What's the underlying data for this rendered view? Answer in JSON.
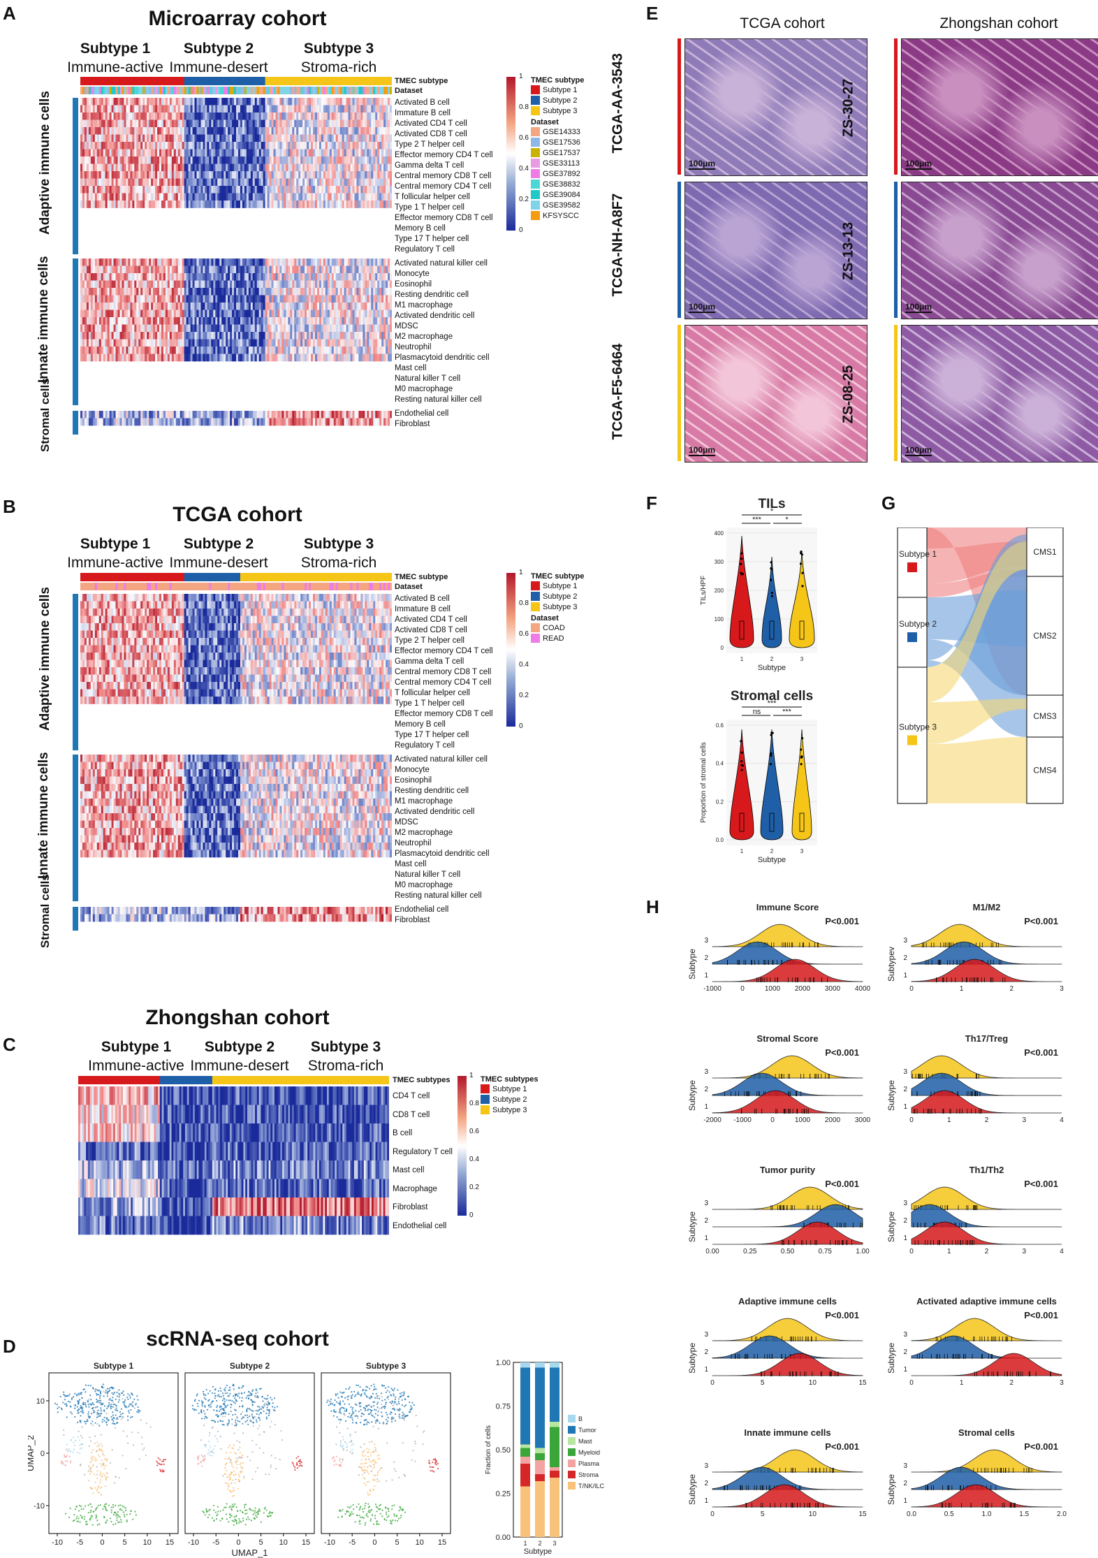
{
  "colors": {
    "s1": "#d7191c",
    "s2": "#1f5fa8",
    "s3": "#f5c518",
    "group_bar": "#1f77b4",
    "heat_hi": "#b2182b",
    "heat_lo": "#1a2a9a"
  },
  "panels": {
    "A": "A",
    "B": "B",
    "C": "C",
    "D": "D",
    "E": "E",
    "F": "F",
    "G": "G",
    "H": "H"
  },
  "subtypes": {
    "s1": "Subtype 1",
    "s2": "Subtype 2",
    "s3": "Subtype 3",
    "s1d": "Immune-active",
    "s2d": "Immune-desert",
    "s3d": "Stroma-rich"
  },
  "groups": {
    "adaptive": "Adaptive immune cells",
    "innate": "Innate immune cells",
    "stromal": "Stromal cells"
  },
  "annot": {
    "tmec": "TMEC subtype",
    "dataset": "Dataset",
    "tmecs": "TMEC subtypes"
  },
  "colorbar": [
    "1",
    "0.8",
    "0.6",
    "0.4",
    "0.2",
    "0"
  ],
  "adaptive_rows": [
    "Activated B cell",
    "Immature  B cell",
    "Activated CD4 T cell",
    "Activated CD8 T cell",
    "Type 2 T helper cell",
    "Effector memory CD4 T cell",
    "Gamma delta T cell",
    "Central memory CD8 T cell",
    "Central memory CD4 T cell",
    "T follicular helper cell",
    "Type 1 T helper cell",
    "Effector memory CD8 T cell",
    "Memory B cell",
    "Type 17 T helper cell",
    "Regulatory T cell"
  ],
  "innate_rows": [
    "Activated natural killer cell",
    "Monocyte",
    "Eosinophil",
    "Resting dendritic cell",
    "M1 macrophage",
    "Activated dendritic cell",
    "MDSC",
    "M2 macrophage",
    "Neutrophil",
    "Plasmacytoid dendritic cell",
    "Mast cell",
    "Natural killer T cell",
    "M0 macrophage",
    "Resting natural killer cell"
  ],
  "stromal_rows": [
    "Endothelial cell",
    "Fibroblast"
  ],
  "panelA": {
    "title": "Microarray cohort",
    "datasets": [
      "GSE14333",
      "GSE17536",
      "GSE17537",
      "GSE33113",
      "GSE37892",
      "GSE38832",
      "GSE39084",
      "GSE39582",
      "KFSYSCC"
    ],
    "dataset_colors": [
      "#f4a582",
      "#8fb8e8",
      "#c9b300",
      "#e89be0",
      "#ef7ce6",
      "#4dd6d6",
      "#21c8c8",
      "#7fd4e8",
      "#f39c12"
    ]
  },
  "panelB": {
    "title": "TCGA cohort",
    "datasets": [
      "COAD",
      "READ"
    ],
    "dataset_colors": [
      "#f4a582",
      "#ef7ce6"
    ]
  },
  "panelC": {
    "title": "Zhongshan cohort",
    "rows": [
      "CD4 T cell",
      "CD8 T cell",
      "B cell",
      "Regulatory T cell",
      "Mast cell",
      "Macrophage",
      "Fibroblast",
      "Endothelial cell"
    ]
  },
  "panelD": {
    "title": "scRNA-seq cohort",
    "xlabel": "UMAP_1",
    "ylabel": "UMAP_2",
    "xticks": [
      "-10",
      "-5",
      "0",
      "5",
      "10",
      "15"
    ],
    "yticks": [
      "10",
      "0",
      "-10"
    ],
    "bar": {
      "ylabel": "Fraction of cells",
      "xlabel": "Subtype",
      "yticks": [
        "1.00",
        "0.75",
        "0.50",
        "0.25",
        "0.00"
      ],
      "xticks": [
        "1",
        "2",
        "3"
      ],
      "legend": [
        "B",
        "Tumor",
        "Mast",
        "Myeloid",
        "Plasma",
        "Stroma",
        "T/NK/ILC"
      ],
      "legend_colors": [
        "#a6d8ee",
        "#1f77b4",
        "#b8e6a0",
        "#3aa63a",
        "#f4a3a3",
        "#d62728",
        "#f9c27a"
      ],
      "fractions": [
        [
          0.03,
          0.44,
          0.02,
          0.05,
          0.04,
          0.13,
          0.29
        ],
        [
          0.03,
          0.46,
          0.03,
          0.04,
          0.08,
          0.04,
          0.32
        ],
        [
          0.03,
          0.31,
          0.03,
          0.23,
          0.02,
          0.04,
          0.34
        ]
      ]
    }
  },
  "panelE": {
    "col1": "TCGA cohort",
    "col2": "Zhongshan cohort",
    "left": [
      "TCGA-AA-3543",
      "TCGA-NH-A8F7",
      "TCGA-F5-6464"
    ],
    "right": [
      "ZS-30-27",
      "ZS-13-13",
      "ZS-08-25"
    ],
    "scale": "100μm"
  },
  "panelF": {
    "tils": {
      "title": "TILs",
      "ylabel": "TILs/HPF",
      "xlabel": "Subtype",
      "yticks": [
        "400",
        "300",
        "200",
        "100",
        "0"
      ],
      "xticks": [
        "1",
        "2",
        "3"
      ],
      "sig": [
        "*",
        "***",
        "*"
      ]
    },
    "stromal": {
      "title": "Stromal cells",
      "ylabel": "Proportion of stromal cells",
      "xlabel": "Subtype",
      "yticks": [
        "0.6",
        "0.4",
        "0.2",
        "0.0"
      ],
      "xticks": [
        "1",
        "2",
        "3"
      ],
      "sig": [
        "***",
        "ns",
        "***"
      ]
    }
  },
  "panelG": {
    "left": [
      "Subtype 1",
      "Subtype 2",
      "Subtype 3"
    ],
    "right": [
      "CMS1",
      "CMS2",
      "CMS3",
      "CMS4"
    ]
  },
  "panelH": [
    {
      "title": "Immune Score",
      "p": "P<0.001",
      "ylabel": "Subtype",
      "xticks": [
        "-1000",
        "0",
        "1000",
        "2000",
        "3000",
        "4000"
      ],
      "means": [
        0.55,
        0.3,
        0.45
      ]
    },
    {
      "title": "M1/M2",
      "p": "P<0.001",
      "ylabel": "Subtypev",
      "xticks": [
        "0",
        "1",
        "2",
        "3"
      ],
      "means": [
        0.42,
        0.35,
        0.32
      ]
    },
    {
      "title": "Stromal Score",
      "p": "P<0.001",
      "ylabel": "Subtype",
      "xticks": [
        "-2000",
        "-1000",
        "0",
        "1000",
        "2000",
        "3000"
      ],
      "means": [
        0.42,
        0.33,
        0.53
      ]
    },
    {
      "title": "Th17/Treg",
      "p": "P<0.001",
      "ylabel": "Subtype",
      "xticks": [
        "0",
        "1",
        "2",
        "3",
        "4"
      ],
      "means": [
        0.22,
        0.2,
        0.2
      ]
    },
    {
      "title": "Tumor purity",
      "p": "P<0.001",
      "ylabel": "Subtype",
      "xticks": [
        "0.00",
        "0.25",
        "0.50",
        "0.75",
        "1.00"
      ],
      "means": [
        0.7,
        0.82,
        0.65
      ]
    },
    {
      "title": "Th1/Th2",
      "p": "P<0.001",
      "ylabel": "Subtype",
      "xticks": [
        "0",
        "1",
        "2",
        "3",
        "4"
      ],
      "means": [
        0.22,
        0.12,
        0.22
      ]
    },
    {
      "title": "Adaptive immune cells",
      "p": "P<0.001",
      "ylabel": "Subtype",
      "xticks": [
        "0",
        "5",
        "10",
        "15"
      ],
      "means": [
        0.58,
        0.38,
        0.5
      ]
    },
    {
      "title": "Activated adaptive immune cells",
      "p": "P<0.001",
      "ylabel": "Subtype",
      "xticks": [
        "0",
        "1",
        "2",
        "3"
      ],
      "means": [
        0.68,
        0.28,
        0.42
      ]
    },
    {
      "title": "Innate immune cells",
      "p": "P<0.001",
      "ylabel": "Subtype",
      "xticks": [
        "0",
        "5",
        "10",
        "15"
      ],
      "means": [
        0.48,
        0.33,
        0.55
      ]
    },
    {
      "title": "Stromal cells",
      "p": "P<0.001",
      "ylabel": "Subtype",
      "xticks": [
        "0.0",
        "0.5",
        "1.0",
        "1.5",
        "2.0"
      ],
      "means": [
        0.43,
        0.33,
        0.55
      ]
    }
  ]
}
